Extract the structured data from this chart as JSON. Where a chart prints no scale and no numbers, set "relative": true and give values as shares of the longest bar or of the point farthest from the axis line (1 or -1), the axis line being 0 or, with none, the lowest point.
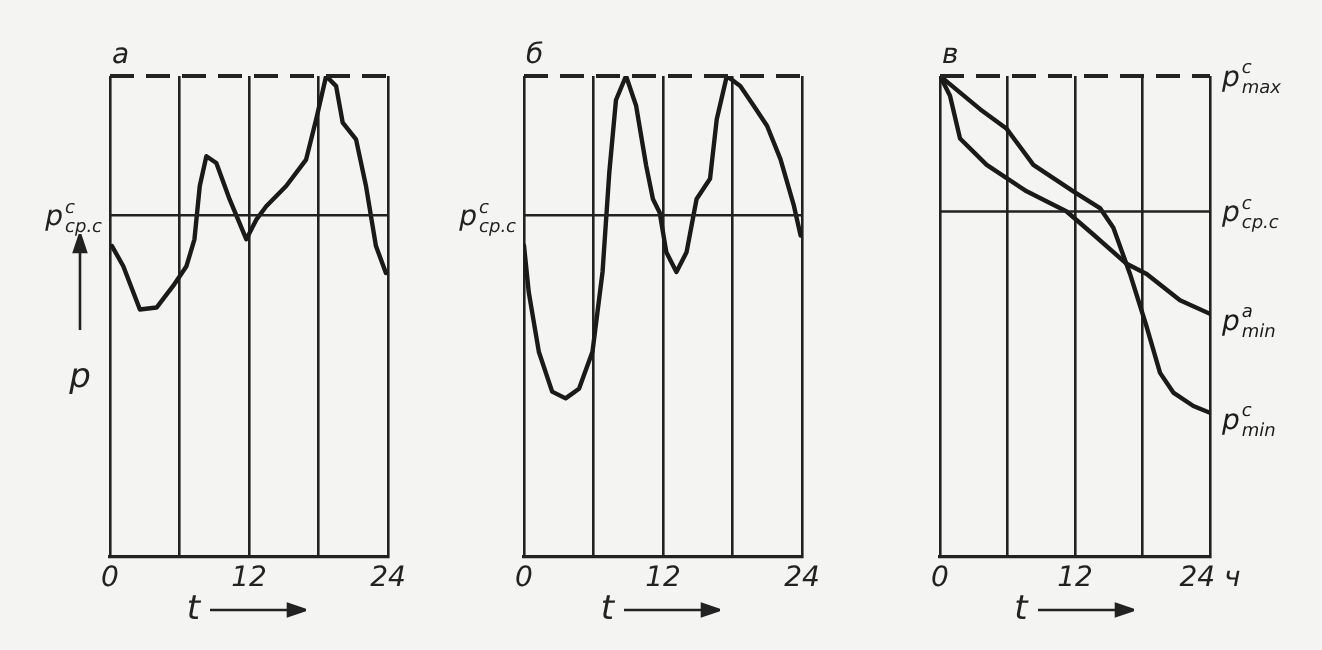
{
  "chart_data": [
    {
      "type": "line",
      "title": "а",
      "xlabel": "t",
      "ylabel": "p",
      "relative": true,
      "xlim": [
        0,
        24
      ],
      "xticks": [
        0,
        {
          "value": 6,
          "label": null
        },
        12,
        {
          "value": 18,
          "label": null
        },
        24
      ],
      "grid": "x",
      "marker": "none",
      "line_style": "solid",
      "legend": false,
      "ref_lines": [
        {
          "axis": "y",
          "value": 1,
          "line_style": "dashed",
          "color": "#222222"
        },
        {
          "axis": "y",
          "value": 0.71,
          "label": "p$^{с}$$_{ср.с}$",
          "color": "#222222"
        }
      ],
      "series": [
        {
          "color": "#1a1a1a",
          "x": [
            0.17,
            1.15,
            2.58,
            4.02,
            5.45,
            6.6,
            7.29,
            7.75,
            8.32,
            9.18,
            10.33,
            11.77,
            12.63,
            13.49,
            15.21,
            16.93,
            17.8,
            18.66,
            19.52,
            20.09,
            21.24,
            22.1,
            22.96,
            23.82
          ],
          "values": [
            0.646,
            0.604,
            0.514,
            0.518,
            0.563,
            0.604,
            0.66,
            0.771,
            0.833,
            0.819,
            0.743,
            0.66,
            0.701,
            0.729,
            0.771,
            0.826,
            0.91,
            1,
            0.979,
            0.903,
            0.868,
            0.771,
            0.646,
            0.59
          ]
        }
      ]
    },
    {
      "type": "line",
      "title": "б",
      "xlabel": "t",
      "relative": true,
      "xlim": [
        0,
        24
      ],
      "xticks": [
        0,
        {
          "value": 6,
          "label": null
        },
        12,
        {
          "value": 18,
          "label": null
        },
        24
      ],
      "grid": "x",
      "marker": "none",
      "line_style": "solid",
      "legend": false,
      "ref_lines": [
        {
          "axis": "y",
          "value": 1,
          "line_style": "dashed",
          "color": "#222222"
        },
        {
          "axis": "y",
          "value": 0.71,
          "label": "p$^{с}$$_{ср.с}$",
          "color": "#222222"
        }
      ],
      "series": [
        {
          "color": "#1a1a1a",
          "x": [
            0,
            0.41,
            1.28,
            2.43,
            3.59,
            4.75,
            5.91,
            6.78,
            7.36,
            7.94,
            8.81,
            9.68,
            10.55,
            11.13,
            11.71,
            12.29,
            13.16,
            14.03,
            14.9,
            16.06,
            16.64,
            17.51,
            18.67,
            19.83,
            20.99,
            22.14,
            23.3,
            23.88
          ],
          "values": [
            0.647,
            0.55,
            0.426,
            0.343,
            0.329,
            0.349,
            0.426,
            0.592,
            0.798,
            0.95,
            1,
            0.938,
            0.813,
            0.744,
            0.716,
            0.633,
            0.592,
            0.633,
            0.744,
            0.786,
            0.91,
            1,
            0.979,
            0.938,
            0.896,
            0.827,
            0.73,
            0.668
          ]
        }
      ]
    },
    {
      "type": "line",
      "title": "в",
      "xlabel": "t",
      "relative": true,
      "xlim": [
        0,
        24
      ],
      "xticks": [
        0,
        {
          "value": 6,
          "label": null
        },
        12,
        {
          "value": 18,
          "label": null
        },
        {
          "value": 24,
          "label": "24 ч"
        }
      ],
      "grid": "x",
      "marker": "none",
      "line_style": "solid",
      "legend": false,
      "ref_lines": [
        {
          "axis": "y",
          "value": 1,
          "label": "p$^{с}$$_{max}$",
          "line_style": "dashed",
          "color": "#222222"
        },
        {
          "axis": "y",
          "value": 0.718,
          "label": "p$^{с}$$_{ср.с}$",
          "color": "#222222"
        }
      ],
      "series": [
        {
          "name": "p$^{а}$$_{min}$",
          "color": "#1a1a1a",
          "x": [
            0,
            0.89,
            1.78,
            4.15,
            7.7,
            11.26,
            13.63,
            16.59,
            18.37,
            21.33,
            24
          ],
          "values": [
            1,
            0.959,
            0.87,
            0.815,
            0.76,
            0.718,
            0.67,
            0.609,
            0.588,
            0.533,
            0.505
          ]
        },
        {
          "name": "p$^{с}$$_{min}$",
          "color": "#1a1a1a",
          "x": [
            0,
            3.56,
            5.93,
            8.3,
            11.85,
            14.22,
            15.41,
            16.89,
            18.37,
            19.56,
            20.74,
            22.52,
            24
          ],
          "values": [
            1,
            0.931,
            0.89,
            0.815,
            0.76,
            0.725,
            0.684,
            0.588,
            0.478,
            0.382,
            0.341,
            0.313,
            0.299
          ]
        }
      ]
    }
  ]
}
